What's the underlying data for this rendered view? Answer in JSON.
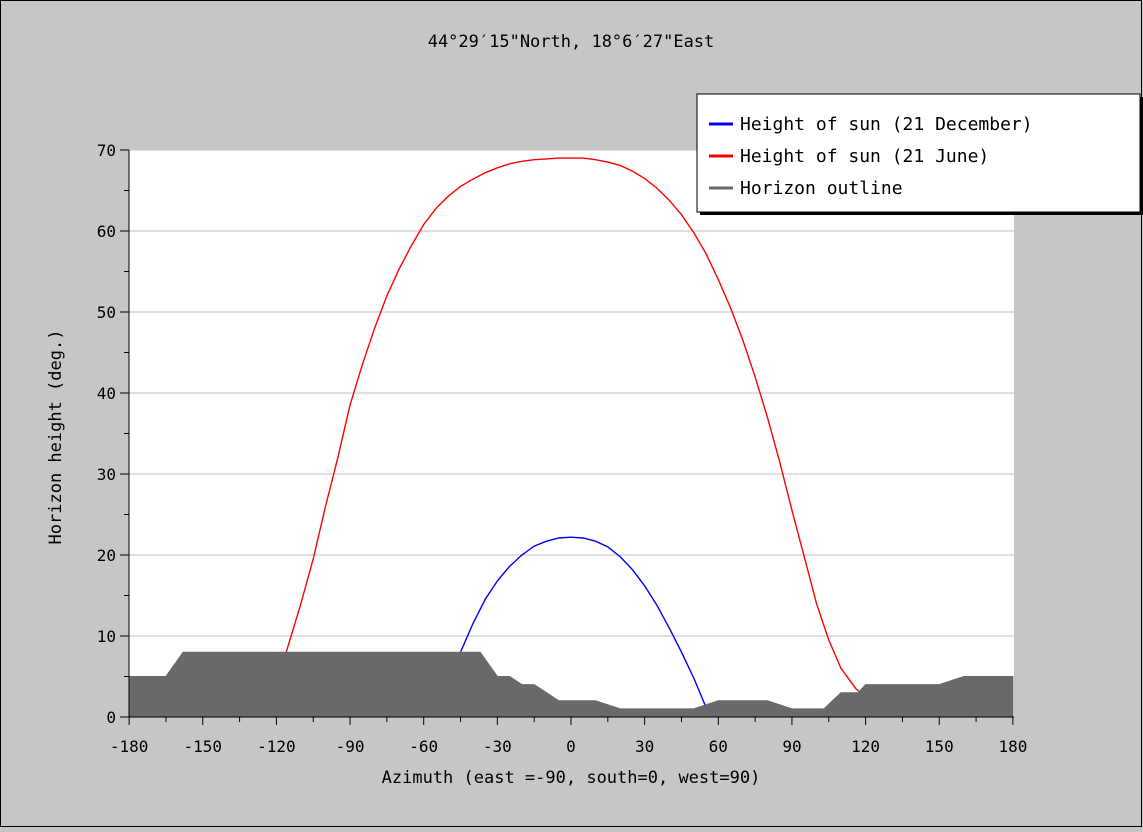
{
  "chart_data": {
    "type": "line",
    "title": "44°29′15\"North, 18°6′27\"East",
    "xlabel": "Azimuth (east =-90, south=0, west=90)",
    "ylabel": "Horizon height (deg.)",
    "xlim": [
      -180,
      180
    ],
    "ylim": [
      0,
      70
    ],
    "x_ticks": [
      -180,
      -150,
      -120,
      -90,
      -60,
      -30,
      0,
      30,
      60,
      90,
      120,
      150,
      180
    ],
    "y_ticks": [
      0,
      10,
      20,
      30,
      40,
      50,
      60,
      70
    ],
    "grid": true,
    "legend_position": "top-right",
    "series": [
      {
        "name": "Height of sun (21 December)",
        "color": "#0000ff",
        "points": [
          [
            -45,
            8
          ],
          [
            -40,
            11.5
          ],
          [
            -35,
            14.5
          ],
          [
            -30,
            16.8
          ],
          [
            -25,
            18.6
          ],
          [
            -20,
            20
          ],
          [
            -15,
            21.1
          ],
          [
            -10,
            21.7
          ],
          [
            -5,
            22.1
          ],
          [
            0,
            22.2
          ],
          [
            5,
            22.1
          ],
          [
            10,
            21.7
          ],
          [
            15,
            21
          ],
          [
            20,
            19.8
          ],
          [
            25,
            18.2
          ],
          [
            30,
            16.2
          ],
          [
            35,
            13.8
          ],
          [
            40,
            11
          ],
          [
            45,
            8
          ],
          [
            50,
            4.8
          ],
          [
            55,
            1.2
          ]
        ]
      },
      {
        "name": "Height of sun (21 June)",
        "color": "#ff0000",
        "points": [
          [
            -116,
            8
          ],
          [
            -110,
            14
          ],
          [
            -105,
            19.5
          ],
          [
            -100,
            26
          ],
          [
            -95,
            32
          ],
          [
            -90,
            38.5
          ],
          [
            -85,
            43.5
          ],
          [
            -80,
            48
          ],
          [
            -75,
            52
          ],
          [
            -70,
            55.3
          ],
          [
            -65,
            58.2
          ],
          [
            -60,
            60.8
          ],
          [
            -55,
            62.8
          ],
          [
            -50,
            64.3
          ],
          [
            -45,
            65.5
          ],
          [
            -40,
            66.4
          ],
          [
            -35,
            67.2
          ],
          [
            -30,
            67.8
          ],
          [
            -25,
            68.3
          ],
          [
            -20,
            68.6
          ],
          [
            -15,
            68.8
          ],
          [
            -10,
            68.9
          ],
          [
            -5,
            69
          ],
          [
            0,
            69
          ],
          [
            5,
            69
          ],
          [
            10,
            68.8
          ],
          [
            15,
            68.5
          ],
          [
            20,
            68.1
          ],
          [
            25,
            67.4
          ],
          [
            30,
            66.5
          ],
          [
            35,
            65.3
          ],
          [
            40,
            63.8
          ],
          [
            45,
            62
          ],
          [
            50,
            59.8
          ],
          [
            55,
            57.2
          ],
          [
            60,
            54
          ],
          [
            65,
            50.5
          ],
          [
            70,
            46.5
          ],
          [
            75,
            42
          ],
          [
            80,
            37
          ],
          [
            85,
            31.5
          ],
          [
            90,
            25.5
          ],
          [
            95,
            19.8
          ],
          [
            100,
            14
          ],
          [
            105,
            9.5
          ],
          [
            110,
            6
          ],
          [
            116,
            3.5
          ],
          [
            120,
            2.5
          ]
        ]
      },
      {
        "name": "Horizon outline",
        "color": "#696969",
        "points": [
          [
            -180,
            5
          ],
          [
            -172,
            5
          ],
          [
            -165,
            5
          ],
          [
            -158,
            8
          ],
          [
            -150,
            8
          ],
          [
            -120,
            8
          ],
          [
            -90,
            8
          ],
          [
            -60,
            8
          ],
          [
            -45,
            8
          ],
          [
            -37,
            8
          ],
          [
            -30,
            5
          ],
          [
            -25,
            5
          ],
          [
            -20,
            4
          ],
          [
            -15,
            4
          ],
          [
            -10,
            3
          ],
          [
            -5,
            2
          ],
          [
            0,
            2
          ],
          [
            10,
            2
          ],
          [
            20,
            1
          ],
          [
            30,
            1
          ],
          [
            40,
            1
          ],
          [
            50,
            1
          ],
          [
            60,
            2
          ],
          [
            70,
            2
          ],
          [
            80,
            2
          ],
          [
            90,
            1
          ],
          [
            97,
            1
          ],
          [
            103,
            1
          ],
          [
            110,
            3
          ],
          [
            117,
            3
          ],
          [
            120,
            4
          ],
          [
            135,
            4
          ],
          [
            150,
            4
          ],
          [
            160,
            5
          ],
          [
            170,
            5
          ],
          [
            180,
            5
          ]
        ]
      }
    ]
  }
}
